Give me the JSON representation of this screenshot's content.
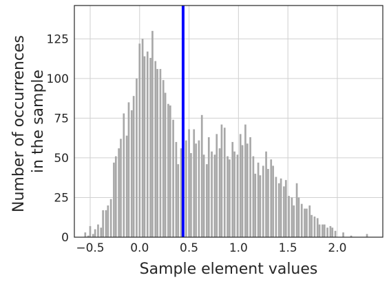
{
  "chart_data": {
    "type": "bar",
    "title": "",
    "xlabel": "Sample element values",
    "ylabel_lines": [
      "Number of occurrences",
      "in the sample"
    ],
    "xlim": [
      -0.66,
      2.46
    ],
    "ylim": [
      0,
      146
    ],
    "xticks": [
      -0.5,
      0.0,
      0.5,
      1.0,
      1.5,
      2.0
    ],
    "xtick_labels": [
      "−0.5",
      "0.0",
      "0.5",
      "1.0",
      "1.5",
      "2.0"
    ],
    "yticks": [
      0,
      25,
      50,
      75,
      100,
      125
    ],
    "ytick_labels": [
      "0",
      "25",
      "50",
      "75",
      "100",
      "125"
    ],
    "grid": true,
    "bin_width": 0.026,
    "bar_color": "#a8a8a8",
    "vline": {
      "x": 0.44,
      "color": "#0000ff"
    },
    "x": [
      -0.55,
      -0.52,
      -0.5,
      -0.47,
      -0.45,
      -0.42,
      -0.39,
      -0.37,
      -0.34,
      -0.32,
      -0.29,
      -0.26,
      -0.24,
      -0.21,
      -0.19,
      -0.16,
      -0.13,
      -0.11,
      -0.08,
      -0.06,
      -0.03,
      0.0,
      0.03,
      0.05,
      0.08,
      0.11,
      0.13,
      0.16,
      0.18,
      0.21,
      0.24,
      0.26,
      0.29,
      0.31,
      0.34,
      0.37,
      0.39,
      0.42,
      0.44,
      0.47,
      0.5,
      0.52,
      0.55,
      0.57,
      0.6,
      0.63,
      0.65,
      0.68,
      0.7,
      0.73,
      0.76,
      0.78,
      0.81,
      0.83,
      0.86,
      0.89,
      0.91,
      0.94,
      0.96,
      0.99,
      1.02,
      1.04,
      1.07,
      1.09,
      1.12,
      1.15,
      1.17,
      1.2,
      1.22,
      1.25,
      1.28,
      1.3,
      1.33,
      1.35,
      1.38,
      1.41,
      1.43,
      1.46,
      1.48,
      1.51,
      1.54,
      1.56,
      1.59,
      1.61,
      1.64,
      1.67,
      1.69,
      1.72,
      1.74,
      1.77,
      1.8,
      1.82,
      1.85,
      1.87,
      1.9,
      1.93,
      1.95,
      1.98,
      2.06,
      2.14,
      2.3
    ],
    "values": [
      3,
      1,
      7,
      2,
      5,
      8,
      6,
      17,
      17,
      20,
      24,
      47,
      51,
      56,
      62,
      78,
      64,
      85,
      80,
      89,
      100,
      122,
      125,
      114,
      117,
      113,
      130,
      111,
      106,
      106,
      99,
      91,
      84,
      83,
      74,
      60,
      46,
      56,
      51,
      61,
      68,
      53,
      68,
      59,
      61,
      77,
      52,
      46,
      63,
      54,
      52,
      65,
      56,
      71,
      69,
      51,
      49,
      60,
      54,
      52,
      65,
      58,
      71,
      59,
      63,
      51,
      40,
      47,
      39,
      45,
      54,
      43,
      49,
      45,
      38,
      34,
      37,
      32,
      36,
      26,
      25,
      20,
      34,
      25,
      21,
      18,
      18,
      20,
      14,
      13,
      12,
      8,
      8,
      8,
      6,
      7,
      6,
      4,
      3,
      1,
      2
    ]
  }
}
